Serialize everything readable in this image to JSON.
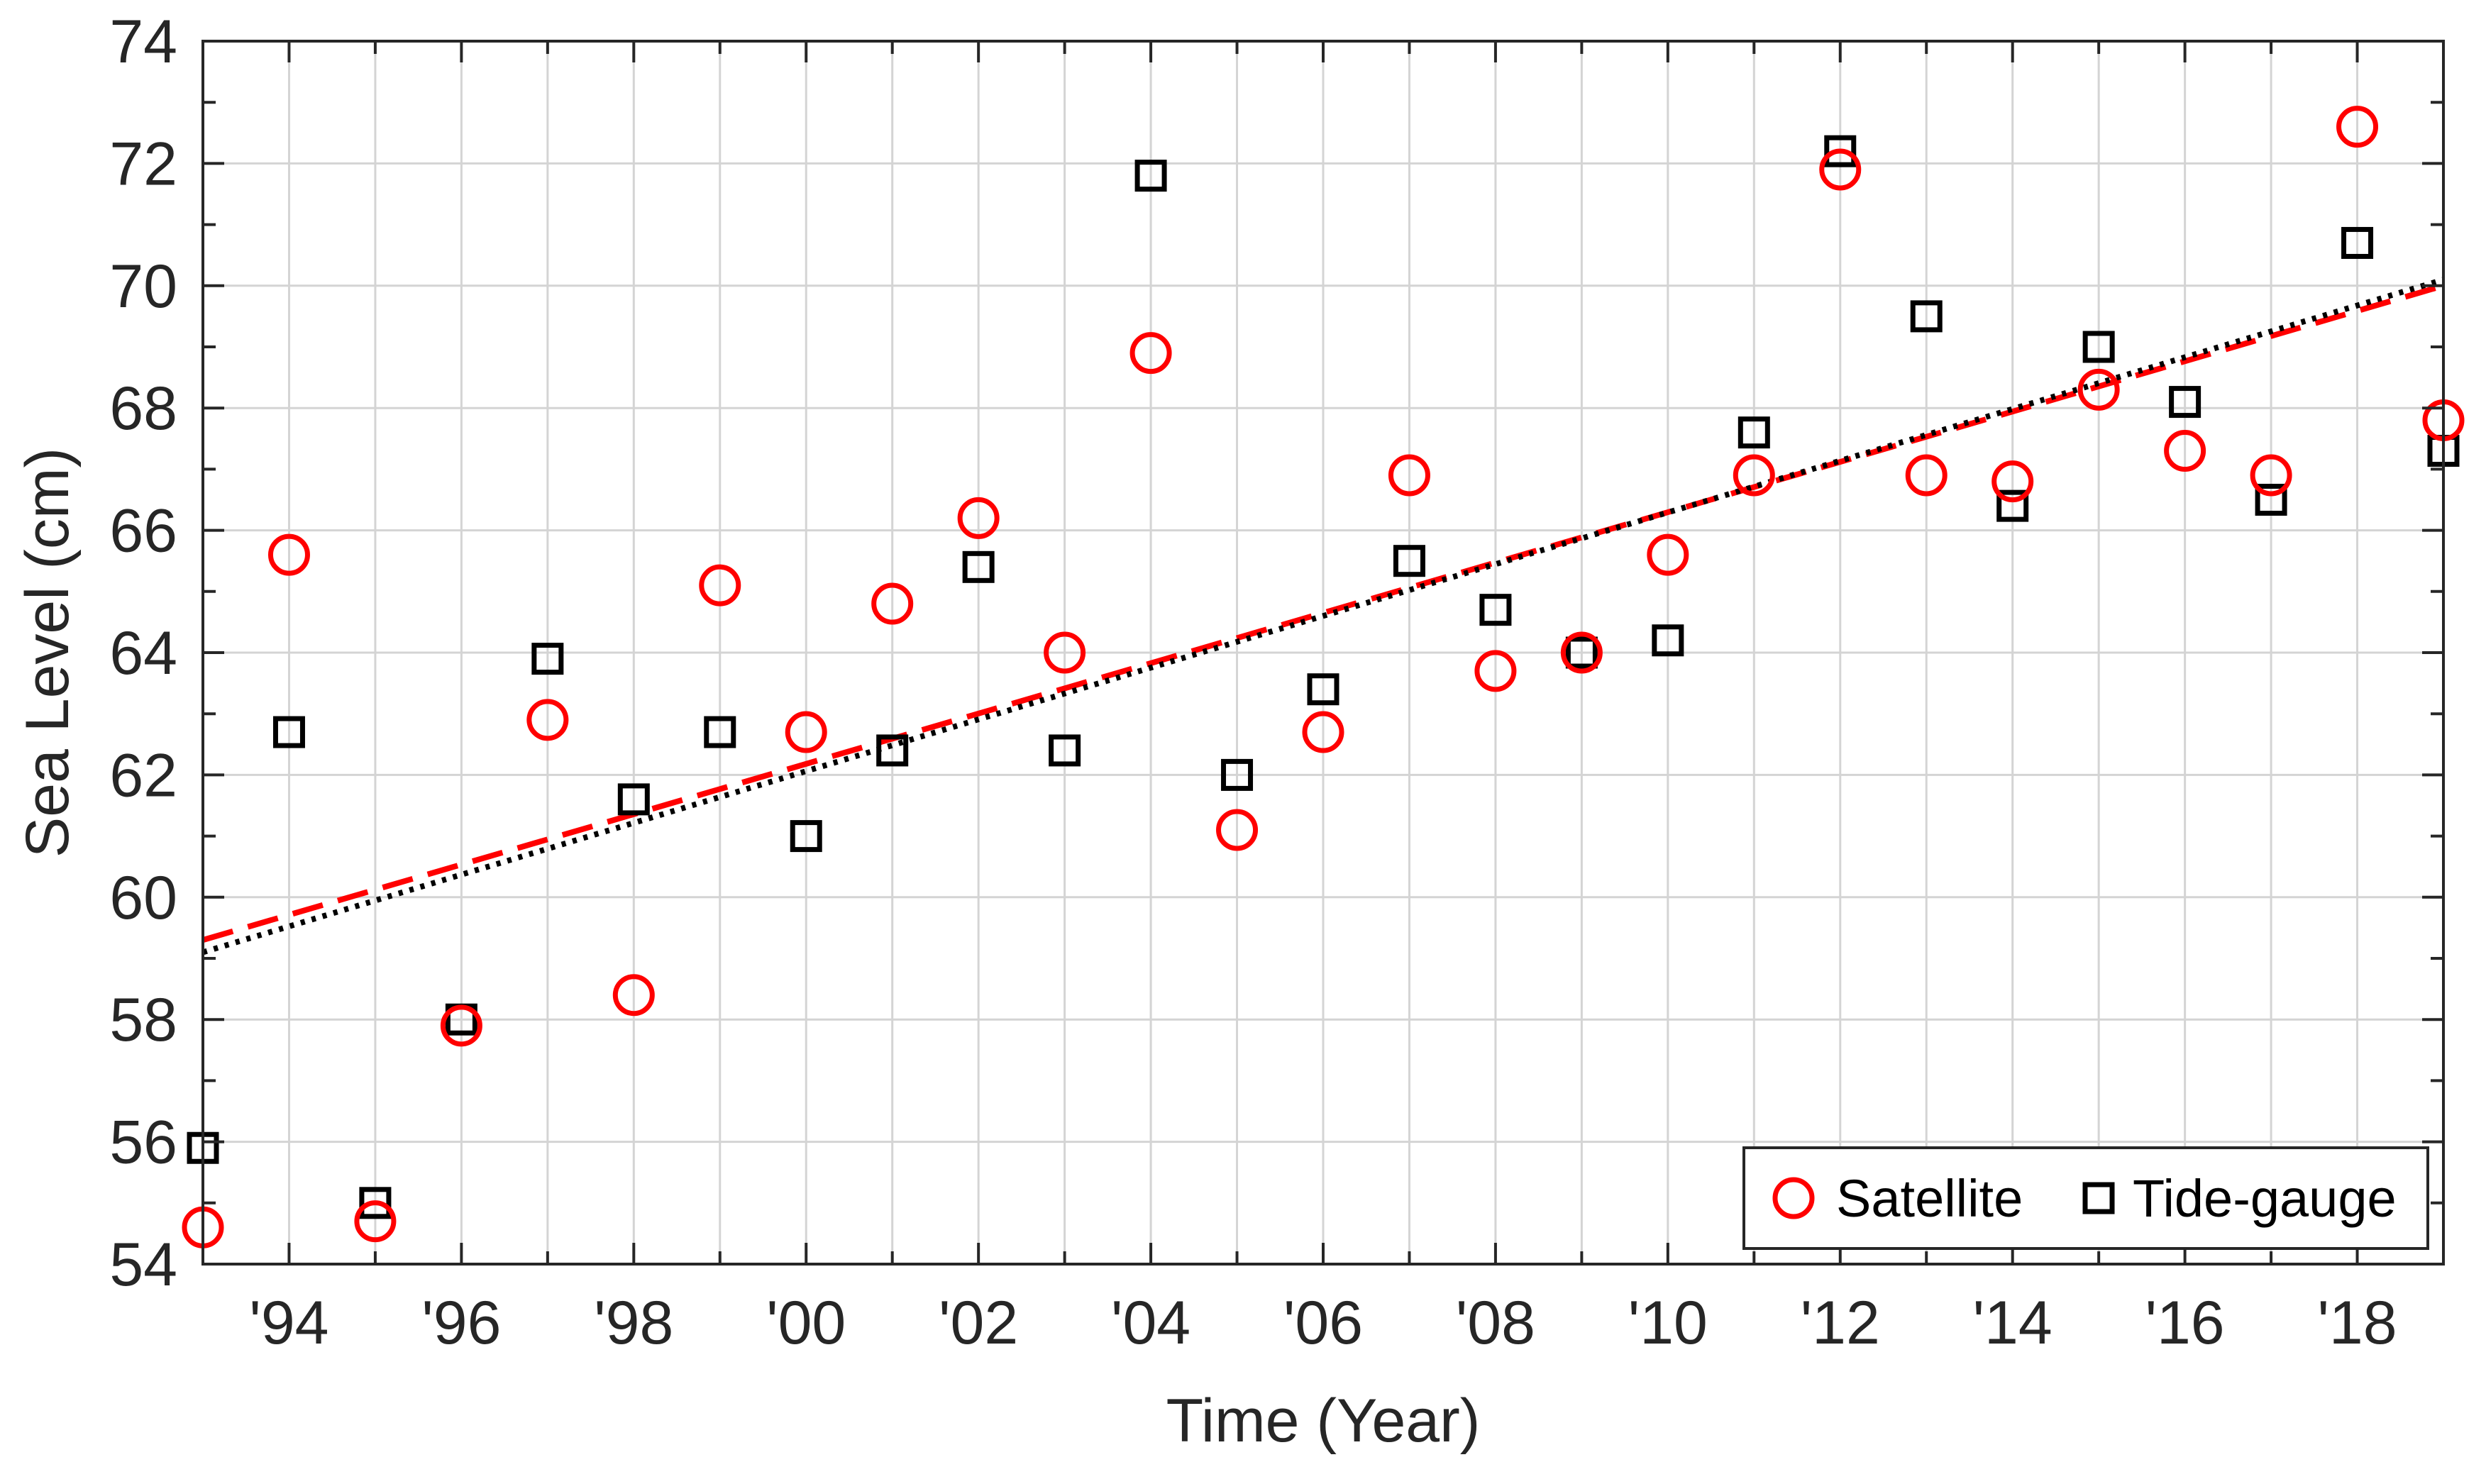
{
  "chart_data": {
    "type": "scatter",
    "title": "",
    "xlabel": "Time (Year)",
    "ylabel": "Sea Level (cm)",
    "xlim": [
      1993,
      2019
    ],
    "ylim": [
      54,
      74
    ],
    "grid": true,
    "legend_position": "bottom-right",
    "x_ticks": [
      {
        "value": 1994,
        "label": "'94"
      },
      {
        "value": 1996,
        "label": "'96"
      },
      {
        "value": 1998,
        "label": "'98"
      },
      {
        "value": 2000,
        "label": "'00"
      },
      {
        "value": 2002,
        "label": "'02"
      },
      {
        "value": 2004,
        "label": "'04"
      },
      {
        "value": 2006,
        "label": "'06"
      },
      {
        "value": 2008,
        "label": "'08"
      },
      {
        "value": 2010,
        "label": "'10"
      },
      {
        "value": 2012,
        "label": "'12"
      },
      {
        "value": 2014,
        "label": "'14"
      },
      {
        "value": 2016,
        "label": "'16"
      },
      {
        "value": 2018,
        "label": "'18"
      }
    ],
    "y_ticks": [
      {
        "value": 54,
        "label": "54"
      },
      {
        "value": 56,
        "label": "56"
      },
      {
        "value": 58,
        "label": "58"
      },
      {
        "value": 60,
        "label": "60"
      },
      {
        "value": 62,
        "label": "62"
      },
      {
        "value": 64,
        "label": "64"
      },
      {
        "value": 66,
        "label": "66"
      },
      {
        "value": 68,
        "label": "68"
      },
      {
        "value": 70,
        "label": "70"
      },
      {
        "value": 72,
        "label": "72"
      },
      {
        "value": 74,
        "label": "74"
      }
    ],
    "x": [
      1993,
      1994,
      1995,
      1996,
      1997,
      1998,
      1999,
      2000,
      2001,
      2002,
      2003,
      2004,
      2005,
      2006,
      2007,
      2008,
      2009,
      2010,
      2011,
      2012,
      2013,
      2014,
      2015,
      2016,
      2017,
      2018,
      2019
    ],
    "series": [
      {
        "name": "Satellite",
        "marker": "circle",
        "color": "#ff0000",
        "values": [
          54.6,
          65.6,
          54.7,
          57.9,
          62.9,
          58.4,
          65.1,
          62.7,
          64.8,
          66.2,
          64.0,
          68.9,
          61.1,
          62.7,
          66.9,
          63.7,
          64.0,
          65.6,
          66.9,
          71.9,
          66.9,
          66.8,
          68.3,
          67.3,
          66.9,
          72.6,
          67.8
        ]
      },
      {
        "name": "Tide-gauge",
        "marker": "square",
        "color": "#000000",
        "values": [
          55.9,
          62.7,
          55.0,
          58.0,
          63.9,
          61.6,
          62.7,
          61.0,
          62.4,
          65.4,
          62.4,
          71.8,
          62.0,
          63.4,
          65.5,
          64.7,
          64.0,
          64.2,
          67.6,
          72.2,
          69.5,
          66.4,
          69.0,
          68.1,
          66.5,
          70.7,
          67.3
        ]
      }
    ],
    "trend_lines": [
      {
        "series": "Satellite",
        "style": "dashed",
        "color": "#ff0000",
        "start": [
          1993,
          59.3
        ],
        "end": [
          2019,
          70.0
        ]
      },
      {
        "series": "Tide-gauge",
        "style": "dotted",
        "color": "#000000",
        "start": [
          1993,
          59.1
        ],
        "end": [
          2019,
          70.1
        ]
      }
    ]
  }
}
